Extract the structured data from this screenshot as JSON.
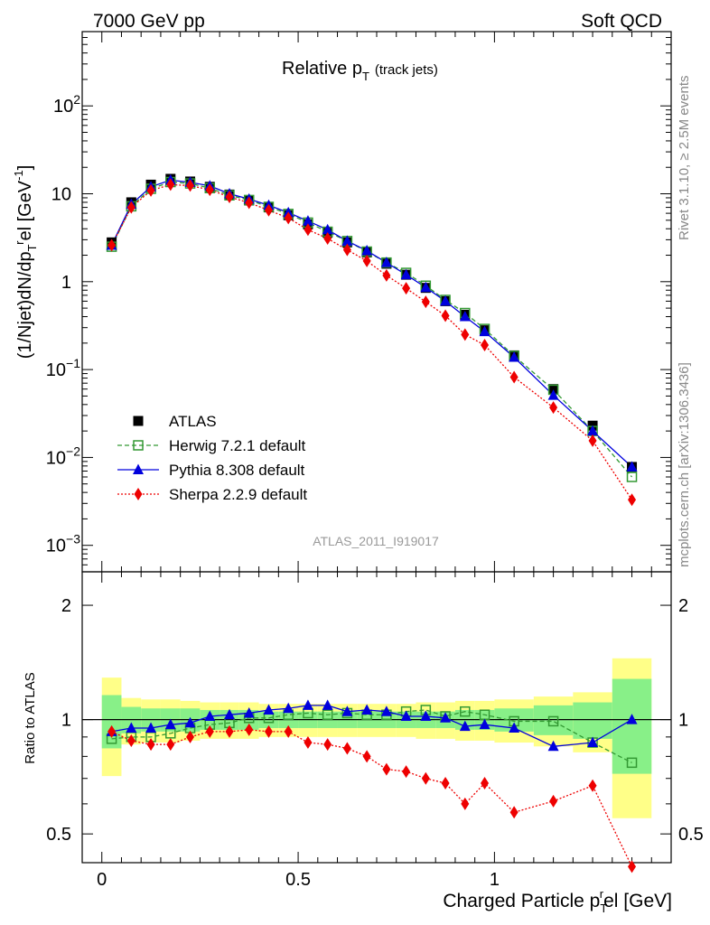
{
  "header": {
    "left": "7000 GeV pp",
    "right": "Soft QCD"
  },
  "side_labels": {
    "rivet": "Rivet 3.1.10, ≥ 2.5M events",
    "mcplots": "mcplots.cern.ch [arXiv:1306.3436]"
  },
  "plot_title": {
    "main": "Relative p",
    "sub": "T",
    "paren": "(track jets)"
  },
  "watermark": "ATLAS_2011_I919017",
  "legend": [
    {
      "key": "atlas",
      "label": "ATLAS"
    },
    {
      "key": "herwig",
      "label": "Herwig 7.2.1 default"
    },
    {
      "key": "pythia",
      "label": "Pythia 8.308 default"
    },
    {
      "key": "sherpa",
      "label": "Sherpa 2.2.9 default"
    }
  ],
  "colors": {
    "atlas": "#000000",
    "herwig": "#339933",
    "pythia": "#0000dd",
    "sherpa": "#ee0000",
    "band_inner": "#88f088",
    "band_outer": "#ffff88"
  },
  "axis_text": {
    "ylabel_main": "(1/Njet)dN/dp",
    "ylabel_sub": "T",
    "ylabel_sup": "r",
    "ylabel_tail": "el [GeV",
    "ylabel_unit_sup": "-1",
    "ylabel_close": "]",
    "ratio_ylabel": "Ratio to ATLAS",
    "xlabel_main": "Charged Particle p",
    "xlabel_sub": "T",
    "xlabel_sup": "r",
    "xlabel_tail": "el [GeV]"
  },
  "chart_data": {
    "type": "line",
    "x": [
      0.025,
      0.075,
      0.125,
      0.175,
      0.225,
      0.275,
      0.325,
      0.375,
      0.425,
      0.475,
      0.525,
      0.575,
      0.625,
      0.675,
      0.725,
      0.775,
      0.825,
      0.875,
      0.925,
      0.975,
      1.05,
      1.15,
      1.25,
      1.35
    ],
    "xlim": [
      -0.05,
      1.45
    ],
    "x_ticks": [
      {
        "v": 0,
        "label": "0"
      },
      {
        "v": 0.5,
        "label": "0.5"
      },
      {
        "v": 1,
        "label": "1"
      }
    ],
    "main": {
      "yscale": "log",
      "ylim": [
        0.0005,
        700
      ],
      "y_ticks": [
        {
          "v": 0.001,
          "base": "10",
          "exp": "−3"
        },
        {
          "v": 0.01,
          "base": "10",
          "exp": "−2"
        },
        {
          "v": 0.1,
          "base": "10",
          "exp": "−1"
        },
        {
          "v": 1,
          "base": "1",
          "exp": ""
        },
        {
          "v": 10,
          "base": "10",
          "exp": ""
        },
        {
          "v": 100,
          "base": "10",
          "exp": "2"
        }
      ],
      "series": [
        {
          "key": "atlas",
          "name": "ATLAS",
          "values": [
            2.8,
            8.0,
            12.7,
            14.8,
            13.8,
            12.0,
            9.8,
            8.4,
            7.0,
            5.7,
            4.5,
            3.6,
            2.8,
            2.15,
            1.6,
            1.2,
            0.85,
            0.6,
            0.42,
            0.28,
            0.145,
            0.06,
            0.023,
            0.0078
          ]
        },
        {
          "key": "herwig",
          "name": "Herwig 7.2.1 default",
          "values": [
            2.5,
            7.2,
            11.4,
            13.6,
            13.1,
            11.6,
            9.6,
            8.5,
            7.1,
            5.9,
            4.7,
            3.7,
            2.9,
            2.2,
            1.65,
            1.26,
            0.9,
            0.62,
            0.44,
            0.29,
            0.143,
            0.059,
            0.02,
            0.006
          ]
        },
        {
          "key": "pythia",
          "name": "Pythia 8.308 default",
          "values": [
            2.6,
            7.6,
            12.0,
            14.3,
            13.5,
            12.3,
            10.0,
            8.7,
            7.4,
            6.1,
            4.9,
            3.9,
            2.9,
            2.25,
            1.65,
            1.2,
            0.86,
            0.6,
            0.4,
            0.27,
            0.138,
            0.051,
            0.02,
            0.0078
          ]
        },
        {
          "key": "sherpa",
          "name": "Sherpa 2.2.9 default",
          "values": [
            2.6,
            7.0,
            10.9,
            12.7,
            12.4,
            11.1,
            9.2,
            7.9,
            6.5,
            5.3,
            3.9,
            3.1,
            2.3,
            1.72,
            1.18,
            0.84,
            0.59,
            0.41,
            0.25,
            0.19,
            0.082,
            0.037,
            0.0155,
            0.0033
          ]
        }
      ]
    },
    "ratio": {
      "yscale": "log",
      "ylim": [
        0.42,
        2.45
      ],
      "y_ticks": [
        {
          "v": 0.5,
          "label": "0.5"
        },
        {
          "v": 1,
          "label": "1"
        },
        {
          "v": 2,
          "label": "2"
        }
      ],
      "bins": [
        [
          0,
          0.05
        ],
        [
          0.05,
          0.1
        ],
        [
          0.1,
          0.15
        ],
        [
          0.15,
          0.2
        ],
        [
          0.2,
          0.25
        ],
        [
          0.25,
          0.3
        ],
        [
          0.3,
          0.35
        ],
        [
          0.35,
          0.4
        ],
        [
          0.4,
          0.45
        ],
        [
          0.45,
          0.5
        ],
        [
          0.5,
          0.55
        ],
        [
          0.55,
          0.6
        ],
        [
          0.6,
          0.65
        ],
        [
          0.65,
          0.7
        ],
        [
          0.7,
          0.75
        ],
        [
          0.75,
          0.8
        ],
        [
          0.8,
          0.85
        ],
        [
          0.85,
          0.9
        ],
        [
          0.9,
          0.95
        ],
        [
          0.95,
          1.0
        ],
        [
          1.0,
          1.1
        ],
        [
          1.1,
          1.2
        ],
        [
          1.2,
          1.3
        ],
        [
          1.3,
          1.4
        ]
      ],
      "band_inner": [
        0.16,
        0.08,
        0.07,
        0.07,
        0.07,
        0.06,
        0.06,
        0.06,
        0.05,
        0.05,
        0.05,
        0.05,
        0.05,
        0.05,
        0.05,
        0.05,
        0.05,
        0.05,
        0.06,
        0.06,
        0.07,
        0.09,
        0.11,
        0.28
      ],
      "band_outer": [
        0.29,
        0.14,
        0.13,
        0.13,
        0.12,
        0.11,
        0.11,
        0.11,
        0.1,
        0.1,
        0.1,
        0.1,
        0.1,
        0.1,
        0.1,
        0.1,
        0.11,
        0.11,
        0.12,
        0.12,
        0.13,
        0.15,
        0.18,
        0.45
      ],
      "series": [
        {
          "key": "herwig",
          "values": [
            0.89,
            0.9,
            0.9,
            0.92,
            0.95,
            0.97,
            0.98,
            1.01,
            1.01,
            1.03,
            1.04,
            1.03,
            1.04,
            1.03,
            1.03,
            1.05,
            1.06,
            1.02,
            1.05,
            1.03,
            0.99,
            0.99,
            0.87,
            0.77
          ]
        },
        {
          "key": "pythia",
          "values": [
            0.93,
            0.95,
            0.95,
            0.97,
            0.98,
            1.02,
            1.03,
            1.04,
            1.06,
            1.07,
            1.09,
            1.09,
            1.05,
            1.06,
            1.05,
            1.02,
            1.02,
            1.01,
            0.96,
            0.97,
            0.95,
            0.85,
            0.87,
            1.0
          ]
        },
        {
          "key": "sherpa",
          "values": [
            0.93,
            0.88,
            0.86,
            0.86,
            0.9,
            0.93,
            0.93,
            0.94,
            0.93,
            0.93,
            0.87,
            0.86,
            0.84,
            0.8,
            0.74,
            0.73,
            0.7,
            0.68,
            0.6,
            0.68,
            0.57,
            0.61,
            0.67,
            0.41
          ]
        }
      ]
    }
  }
}
